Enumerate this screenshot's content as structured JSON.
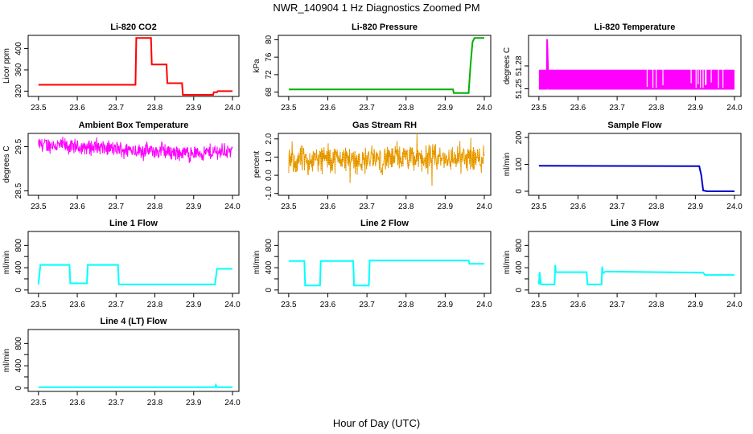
{
  "figure": {
    "title": "NWR_140904  1 Hz Diagnostics Zoomed PM",
    "xlabel": "Hour of Day (UTC)"
  },
  "chart_data": [
    {
      "type": "line",
      "title": "Li-820 CO2",
      "ylabel": "Licor ppm",
      "color": "#ff0000",
      "xlim": [
        23.49,
        24.0
      ],
      "xticks": [
        23.5,
        23.6,
        23.7,
        23.8,
        23.9,
        24.0
      ],
      "xtick_labels": [
        "23.5",
        "23.6",
        "23.7",
        "23.8",
        "23.9",
        "24.0"
      ],
      "ylim": [
        310,
        425
      ],
      "yticks": [
        320,
        360,
        400
      ],
      "ytick_labels": [
        "320",
        "360",
        "400"
      ],
      "series": [
        {
          "x": [
            23.5,
            23.75,
            23.752,
            23.79,
            23.792,
            23.83,
            23.832,
            23.87,
            23.872,
            23.92,
            23.922,
            23.95,
            23.952,
            23.96,
            23.962,
            24.0
          ],
          "y": [
            332,
            332,
            420,
            420,
            370,
            370,
            335,
            335,
            313,
            313,
            313,
            313,
            318,
            318,
            320,
            320
          ]
        }
      ]
    },
    {
      "type": "line",
      "title": "Li-820 Pressure",
      "ylabel": "kPa",
      "color": "#00b000",
      "xlim": [
        23.49,
        24.0
      ],
      "xticks": [
        23.5,
        23.6,
        23.7,
        23.8,
        23.9,
        24.0
      ],
      "xtick_labels": [
        "23.5",
        "23.6",
        "23.7",
        "23.8",
        "23.9",
        "24.0"
      ],
      "ylim": [
        67,
        81
      ],
      "yticks": [
        68,
        72,
        76,
        80
      ],
      "ytick_labels": [
        "68",
        "72",
        "76",
        "80"
      ],
      "series": [
        {
          "x": [
            23.5,
            23.92,
            23.922,
            23.96,
            23.965,
            23.97,
            23.975,
            24.0
          ],
          "y": [
            68.6,
            68.6,
            67.8,
            67.8,
            74.5,
            79.5,
            80.4,
            80.4
          ]
        }
      ]
    },
    {
      "type": "line",
      "title": "Li-820 Temperature",
      "ylabel": "degrees C",
      "color": "#ff00ff",
      "xlim": [
        23.49,
        24.0
      ],
      "xticks": [
        23.5,
        23.6,
        23.7,
        23.8,
        23.9,
        24.0
      ],
      "xtick_labels": [
        "23.5",
        "23.6",
        "23.7",
        "23.8",
        "23.9",
        "24.0"
      ],
      "ylim": [
        51.24,
        51.32
      ],
      "yticks": [
        51.25,
        51.28
      ],
      "ytick_labels": [
        "51.25",
        "51.28"
      ],
      "series": [
        {
          "x": [
            23.5,
            23.52,
            23.521,
            23.525,
            23.53,
            24.0
          ],
          "y": [
            51.25,
            51.25,
            51.315,
            51.25,
            51.25,
            51.25
          ],
          "band": [
            51.25,
            51.275
          ]
        }
      ]
    },
    {
      "type": "line",
      "title": "Ambient Box Temperature",
      "ylabel": "degrees C",
      "color": "#ff00ff",
      "xlim": [
        23.49,
        24.0
      ],
      "xticks": [
        23.5,
        23.6,
        23.7,
        23.8,
        23.9,
        24.0
      ],
      "xtick_labels": [
        "23.5",
        "23.6",
        "23.7",
        "23.8",
        "23.9",
        "24.0"
      ],
      "ylim": [
        28.4,
        29.8
      ],
      "yticks": [
        28.5,
        29.5
      ],
      "ytick_labels": [
        "28.5",
        "29.5"
      ],
      "series": [
        {
          "x": [
            23.5,
            23.6,
            23.7,
            23.8,
            23.9,
            24.0
          ],
          "y": [
            29.55,
            29.5,
            29.45,
            29.4,
            29.35,
            29.4
          ],
          "noise": 0.18
        }
      ]
    },
    {
      "type": "line",
      "title": "Gas Stream RH",
      "ylabel": "percent",
      "color": "#ffa500",
      "xlim": [
        23.49,
        24.0
      ],
      "xticks": [
        23.5,
        23.6,
        23.7,
        23.8,
        23.9,
        24.0
      ],
      "xtick_labels": [
        "23.5",
        "23.6",
        "23.7",
        "23.8",
        "23.9",
        "24.0"
      ],
      "ylim": [
        -1.1,
        2.3
      ],
      "yticks": [
        -1.0,
        0.0,
        1.0,
        2.0
      ],
      "ytick_labels": [
        "-1.0",
        "0.0",
        "1.0",
        "2.0"
      ],
      "series": [
        {
          "x": [
            23.5,
            23.6,
            23.7,
            23.8,
            23.9,
            24.0
          ],
          "y": [
            0.8,
            0.9,
            0.85,
            0.9,
            0.9,
            0.95
          ],
          "noise": 0.75
        }
      ]
    },
    {
      "type": "line",
      "title": "Sample Flow",
      "ylabel": "ml/min",
      "color": "#0000cc",
      "xlim": [
        23.49,
        24.0
      ],
      "xticks": [
        23.5,
        23.6,
        23.7,
        23.8,
        23.9,
        24.0
      ],
      "xtick_labels": [
        "23.5",
        "23.6",
        "23.7",
        "23.8",
        "23.9",
        "24.0"
      ],
      "ylim": [
        -15,
        215
      ],
      "yticks": [
        0,
        100,
        200
      ],
      "ytick_labels": [
        "0",
        "100",
        "200"
      ],
      "series": [
        {
          "x": [
            23.5,
            23.91,
            23.915,
            23.92,
            23.93,
            24.0
          ],
          "y": [
            95,
            93,
            60,
            3,
            0,
            0
          ]
        }
      ]
    },
    {
      "type": "line",
      "title": "Line 1 Flow",
      "ylabel": "ml/min",
      "color": "#00ffff",
      "xlim": [
        23.49,
        24.0
      ],
      "xticks": [
        23.5,
        23.6,
        23.7,
        23.8,
        23.9,
        24.0
      ],
      "xtick_labels": [
        "23.5",
        "23.6",
        "23.7",
        "23.8",
        "23.9",
        "24.0"
      ],
      "ylim": [
        -60,
        1050
      ],
      "yticks": [
        0,
        200,
        400,
        600,
        800
      ],
      "ytick_labels": [
        "0",
        "400",
        "800"
      ],
      "series": [
        {
          "x": [
            23.5,
            23.505,
            23.58,
            23.582,
            23.625,
            23.627,
            23.705,
            23.707,
            23.955,
            23.96,
            24.0
          ],
          "y": [
            100,
            450,
            450,
            120,
            120,
            450,
            450,
            100,
            100,
            380,
            380
          ]
        }
      ]
    },
    {
      "type": "line",
      "title": "Line 2 Flow",
      "ylabel": "ml/min",
      "color": "#00ffff",
      "xlim": [
        23.49,
        24.0
      ],
      "xticks": [
        23.5,
        23.6,
        23.7,
        23.8,
        23.9,
        24.0
      ],
      "xtick_labels": [
        "23.5",
        "23.6",
        "23.7",
        "23.8",
        "23.9",
        "24.0"
      ],
      "ylim": [
        -60,
        1050
      ],
      "yticks": [
        0,
        200,
        400,
        600,
        800
      ],
      "ytick_labels": [
        "0",
        "400",
        "800"
      ],
      "series": [
        {
          "x": [
            23.5,
            23.54,
            23.542,
            23.58,
            23.582,
            23.665,
            23.667,
            23.705,
            23.707,
            23.96,
            23.962,
            24.0
          ],
          "y": [
            520,
            520,
            80,
            80,
            520,
            520,
            80,
            80,
            530,
            530,
            470,
            470
          ]
        }
      ]
    },
    {
      "type": "line",
      "title": "Line 3 Flow",
      "ylabel": "ml/min",
      "color": "#00ffff",
      "xlim": [
        23.49,
        24.0
      ],
      "xticks": [
        23.5,
        23.6,
        23.7,
        23.8,
        23.9,
        24.0
      ],
      "xtick_labels": [
        "23.5",
        "23.6",
        "23.7",
        "23.8",
        "23.9",
        "24.0"
      ],
      "ylim": [
        -60,
        1050
      ],
      "yticks": [
        0,
        200,
        400,
        600,
        800
      ],
      "ytick_labels": [
        "0",
        "400",
        "800"
      ],
      "series": [
        {
          "x": [
            23.5,
            23.502,
            23.505,
            23.54,
            23.542,
            23.543,
            23.622,
            23.624,
            23.66,
            23.662,
            23.663,
            23.67,
            23.92,
            23.925,
            24.0
          ],
          "y": [
            100,
            320,
            100,
            100,
            450,
            320,
            320,
            100,
            100,
            420,
            300,
            330,
            310,
            270,
            270
          ]
        }
      ]
    },
    {
      "type": "line",
      "title": "Line 4 (LT) Flow",
      "ylabel": "ml/min",
      "color": "#00ffff",
      "xlim": [
        23.49,
        24.0
      ],
      "xticks": [
        23.5,
        23.6,
        23.7,
        23.8,
        23.9,
        24.0
      ],
      "xtick_labels": [
        "23.5",
        "23.6",
        "23.7",
        "23.8",
        "23.9",
        "24.0"
      ],
      "ylim": [
        -60,
        1050
      ],
      "yticks": [
        0,
        200,
        400,
        600,
        800
      ],
      "ytick_labels": [
        "0",
        "400",
        "800"
      ],
      "series": [
        {
          "x": [
            23.5,
            23.955,
            23.957,
            23.96,
            24.0
          ],
          "y": [
            15,
            15,
            55,
            15,
            15
          ]
        }
      ]
    }
  ]
}
